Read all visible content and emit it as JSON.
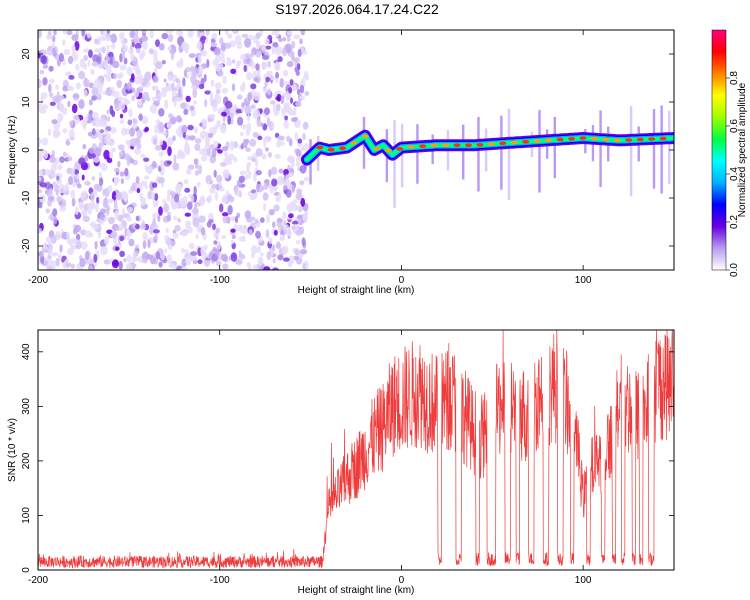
{
  "title": "S197.2026.064.17.24.C22",
  "chart_data": [
    {
      "type": "heatmap",
      "name": "spectrogram",
      "xlabel": "Height of straight line (km)",
      "ylabel": "Frequency (Hz)",
      "xlim": [
        -200,
        150
      ],
      "ylim": [
        -25,
        25
      ],
      "xticks": [
        -200,
        -100,
        0,
        100
      ],
      "yticks": [
        -20,
        -10,
        0,
        10,
        20
      ],
      "noise_region_end_km": -52,
      "signal_track": {
        "x_km": [
          -52,
          -45,
          -40,
          -30,
          -20,
          -15,
          -10,
          -5,
          0,
          20,
          40,
          60,
          80,
          100,
          120,
          150
        ],
        "freq_hz": [
          -2,
          0.5,
          0,
          0.5,
          3,
          0,
          1,
          -1,
          0.5,
          1,
          1,
          1.5,
          2,
          2.5,
          2,
          2.5
        ],
        "peak_amplitude": 0.95
      },
      "colorbar": {
        "label": "Normalized spectral amplitude",
        "range": [
          0.0,
          1.0
        ],
        "ticks": [
          "0.0",
          "0.2",
          "0.4",
          "0.6",
          "0.8"
        ],
        "colors": [
          "#ffffff",
          "#b89cf0",
          "#6a00e0",
          "#0000ff",
          "#00b0ff",
          "#00ffff",
          "#00ff40",
          "#a0ff00",
          "#ffff00",
          "#ff8000",
          "#ff0000",
          "#ff0080"
        ]
      }
    },
    {
      "type": "line",
      "name": "snr",
      "xlabel": "Height of straight line (km)",
      "ylabel": "SNR (10 * v/v)",
      "xlim": [
        -200,
        150
      ],
      "ylim": [
        0,
        440
      ],
      "xticks": [
        -200,
        -100,
        0,
        100
      ],
      "yticks": [
        0,
        100,
        200,
        300,
        400
      ],
      "color": "#ee3b3b",
      "noise_level": 15,
      "rise_start_km": -43,
      "envelope": {
        "x_km": [
          -43,
          -40,
          -35,
          -30,
          -25,
          -20,
          -15,
          -10,
          -5,
          0,
          5,
          10,
          15,
          20,
          25,
          30,
          35,
          40,
          45,
          50,
          55,
          60,
          65,
          70,
          75,
          80,
          85,
          90,
          95,
          100,
          105,
          110,
          115,
          120,
          125,
          130,
          135,
          140,
          145,
          150
        ],
        "snr": [
          40,
          120,
          150,
          180,
          200,
          230,
          260,
          280,
          320,
          330,
          340,
          350,
          330,
          320,
          330,
          330,
          300,
          270,
          260,
          280,
          330,
          320,
          310,
          300,
          340,
          350,
          360,
          330,
          300,
          140,
          200,
          220,
          250,
          330,
          320,
          300,
          320,
          360,
          370,
          360
        ]
      },
      "dropouts_km": [
        [
          20,
          22
        ],
        [
          30,
          33
        ],
        [
          41,
          43
        ],
        [
          47,
          52
        ],
        [
          57,
          60
        ],
        [
          63,
          65
        ],
        [
          70,
          73
        ],
        [
          78,
          81
        ],
        [
          86,
          89
        ],
        [
          93,
          95
        ],
        [
          102,
          104
        ],
        [
          110,
          112
        ],
        [
          116,
          118
        ],
        [
          121,
          123
        ],
        [
          127,
          129
        ],
        [
          131,
          133
        ],
        [
          136,
          139
        ]
      ],
      "dropout_level": 20
    }
  ]
}
